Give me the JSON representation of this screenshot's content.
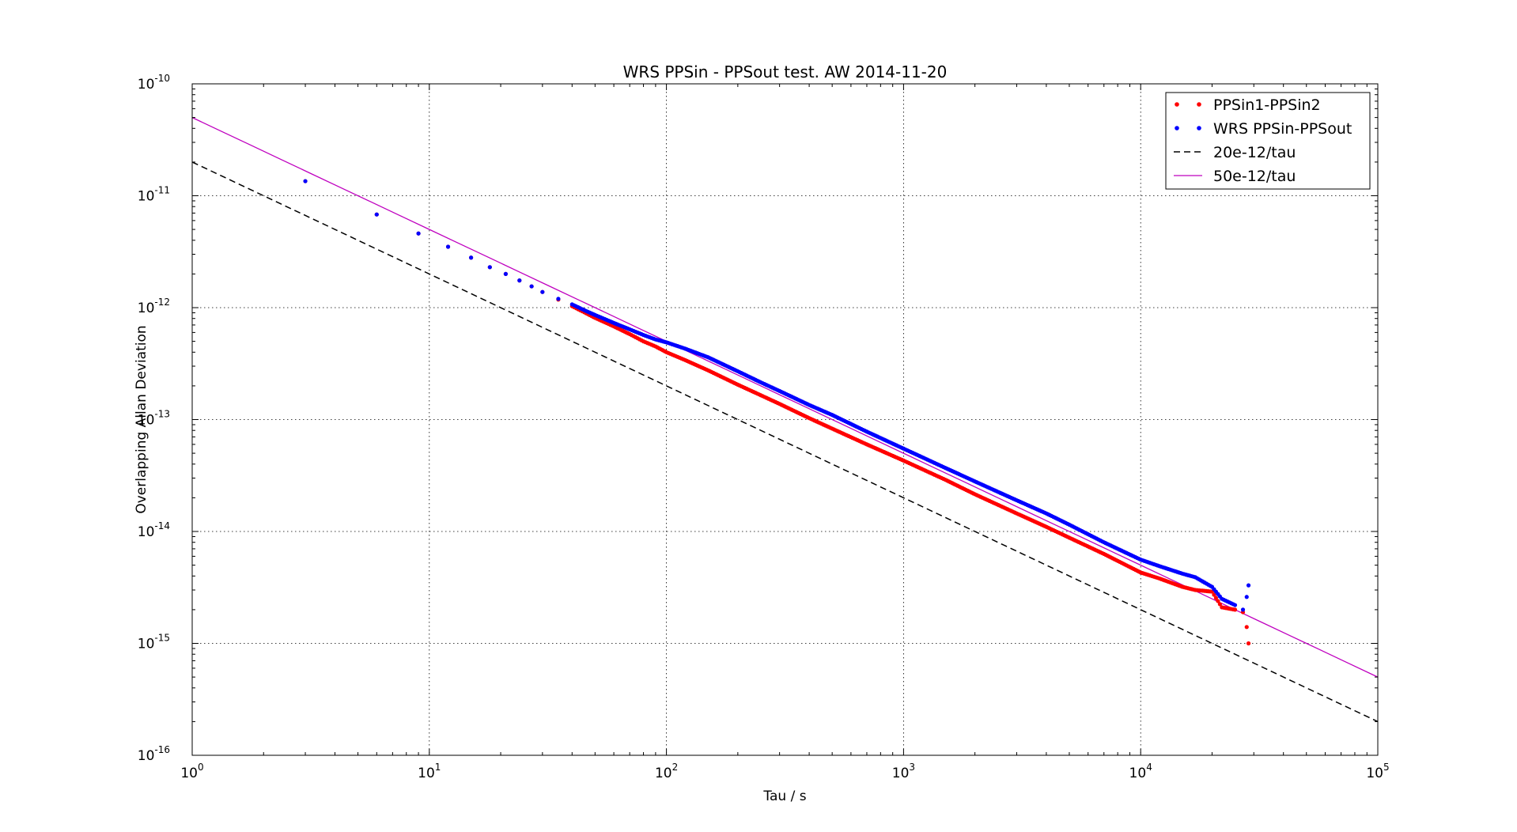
{
  "chart_data": {
    "type": "scatter",
    "title": "WRS PPSin - PPSout test. AW 2014-11-20",
    "xlabel": "Tau / s",
    "ylabel": "Overlapping Allan Deviation",
    "xscale": "log",
    "yscale": "log",
    "xlim": [
      1,
      100000
    ],
    "ylim": [
      1e-16,
      1e-10
    ],
    "grid": true,
    "legend_position": "top-right",
    "x_ticks": [
      {
        "base": "10",
        "exp": "0"
      },
      {
        "base": "10",
        "exp": "1"
      },
      {
        "base": "10",
        "exp": "2"
      },
      {
        "base": "10",
        "exp": "3"
      },
      {
        "base": "10",
        "exp": "4"
      },
      {
        "base": "10",
        "exp": "5"
      }
    ],
    "y_ticks": [
      {
        "base": "10",
        "exp": "-16"
      },
      {
        "base": "10",
        "exp": "-15"
      },
      {
        "base": "10",
        "exp": "-14"
      },
      {
        "base": "10",
        "exp": "-13"
      },
      {
        "base": "10",
        "exp": "-12"
      },
      {
        "base": "10",
        "exp": "-11"
      },
      {
        "base": "10",
        "exp": "-10"
      }
    ],
    "series": [
      {
        "name": "PPSin1-PPSin2",
        "kind": "points",
        "color": "#ff0000",
        "x": [
          3,
          6,
          9,
          12,
          15,
          18,
          21,
          24,
          27,
          30,
          35,
          40,
          45,
          50,
          55,
          60,
          70,
          80,
          90,
          100,
          120,
          150,
          200,
          250,
          300,
          400,
          500,
          700,
          1000,
          1500,
          2000,
          3000,
          4000,
          5000,
          7000,
          10000,
          12000,
          15000,
          17000,
          20000,
          22000,
          25000,
          27000,
          28000,
          28500
        ],
        "y": [
          1.35e-11,
          6.8e-12,
          4.6e-12,
          3.5e-12,
          2.8e-12,
          2.3e-12,
          2e-12,
          1.75e-12,
          1.55e-12,
          1.38e-12,
          1.18e-12,
          1.03e-12,
          9.1e-13,
          8.1e-13,
          7.4e-13,
          6.8e-13,
          5.8e-13,
          5e-13,
          4.5e-13,
          4e-13,
          3.4e-13,
          2.75e-13,
          2.05e-13,
          1.65e-13,
          1.38e-13,
          1.03e-13,
          8.3e-14,
          6e-14,
          4.3e-14,
          2.9e-14,
          2.15e-14,
          1.45e-14,
          1.1e-14,
          8.8e-15,
          6.3e-15,
          4.3e-15,
          3.8e-15,
          3.2e-15,
          3e-15,
          2.9e-15,
          2.1e-15,
          2e-15,
          1.9e-15,
          1.4e-15,
          1e-15
        ]
      },
      {
        "name": "WRS PPSin-PPSout",
        "kind": "points",
        "color": "#0000ff",
        "x": [
          3,
          6,
          9,
          12,
          15,
          18,
          21,
          24,
          27,
          30,
          35,
          40,
          45,
          50,
          55,
          60,
          70,
          80,
          90,
          100,
          120,
          150,
          200,
          250,
          300,
          400,
          500,
          700,
          1000,
          1500,
          2000,
          3000,
          4000,
          5000,
          7000,
          10000,
          12000,
          15000,
          17000,
          20000,
          22000,
          25000,
          27000,
          28000,
          28500
        ],
        "y": [
          1.35e-11,
          6.8e-12,
          4.6e-12,
          3.5e-12,
          2.8e-12,
          2.3e-12,
          2e-12,
          1.75e-12,
          1.55e-12,
          1.38e-12,
          1.2e-12,
          1.07e-12,
          9.5e-13,
          8.6e-13,
          7.9e-13,
          7.3e-13,
          6.4e-13,
          5.7e-13,
          5.2e-13,
          4.9e-13,
          4.3e-13,
          3.6e-13,
          2.7e-13,
          2.15e-13,
          1.8e-13,
          1.35e-13,
          1.1e-13,
          7.8e-14,
          5.5e-14,
          3.7e-14,
          2.8e-14,
          1.9e-14,
          1.45e-14,
          1.15e-14,
          8e-15,
          5.6e-15,
          4.9e-15,
          4.2e-15,
          3.9e-15,
          3.2e-15,
          2.5e-15,
          2.2e-15,
          2e-15,
          2.6e-15,
          3.3e-15
        ]
      },
      {
        "name": "20e-12/tau",
        "kind": "line",
        "color": "#000000",
        "dash": true,
        "coefficient": 2e-11
      },
      {
        "name": "50e-12/tau",
        "kind": "line",
        "color": "#bf00bf",
        "dash": false,
        "coefficient": 5e-11
      }
    ]
  }
}
